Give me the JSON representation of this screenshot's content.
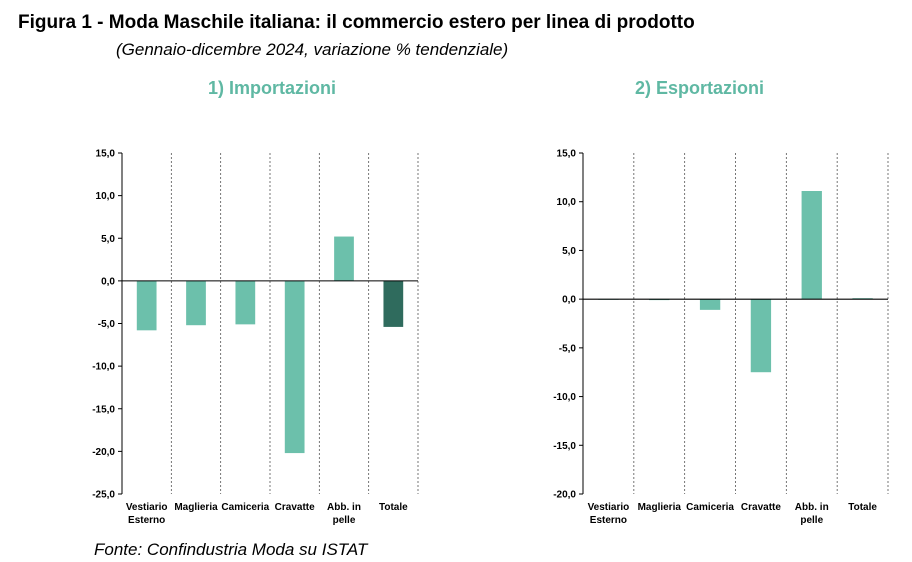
{
  "figure": {
    "title": "Figura 1 - Moda Maschile italiana: il commercio estero per linea di prodotto",
    "subtitle": "(Gennaio-dicembre 2024, variazione % tendenziale)",
    "source": "Fonte: Confindustria Moda su ISTAT"
  },
  "colors": {
    "bar": "#6cc0ab",
    "bar_total": "#2f6b5d",
    "panel_title": "#5fb8a3",
    "axis": "#000000",
    "separator": "#555555"
  },
  "chart_data": [
    {
      "type": "bar",
      "title": "1) Importazioni",
      "categories": [
        "Vestiario Esterno",
        "Maglieria",
        "Camiceria",
        "Cravatte",
        "Abb. in pelle",
        "Totale"
      ],
      "category_lines": [
        [
          "Vestiario",
          "Esterno"
        ],
        [
          "Maglieria"
        ],
        [
          "Camiceria"
        ],
        [
          "Cravatte"
        ],
        [
          "Abb. in",
          "pelle"
        ],
        [
          "Totale"
        ]
      ],
      "values": [
        -5.8,
        -5.2,
        -5.1,
        -20.2,
        5.2,
        -5.4
      ],
      "highlight_index": 5,
      "ylim": [
        -25,
        15
      ],
      "yticks": [
        15,
        10,
        5,
        0,
        -5,
        -10,
        -15,
        -20,
        -25
      ],
      "ytick_labels": [
        "15,0",
        "10,0",
        "5,0",
        "0,0",
        "-5,0",
        "-10,0",
        "-15,0",
        "-20,0",
        "-25,0"
      ],
      "grid": false
    },
    {
      "type": "bar",
      "title": "2) Esportazioni",
      "categories": [
        "Vestiario Esterno",
        "Maglieria",
        "Camiceria",
        "Cravatte",
        "Abb. in pelle",
        "Totale"
      ],
      "category_lines": [
        [
          "Vestiario",
          "Esterno"
        ],
        [
          "Maglieria"
        ],
        [
          "Camiceria"
        ],
        [
          "Cravatte"
        ],
        [
          "Abb. in",
          "pelle"
        ],
        [
          "Totale"
        ]
      ],
      "values": [
        0.0,
        -0.1,
        -1.1,
        -7.5,
        11.1,
        0.1
      ],
      "ylim": [
        -20,
        15
      ],
      "yticks": [
        15,
        10,
        5,
        0,
        -5,
        -10,
        -15,
        -20
      ],
      "ytick_labels": [
        "15,0",
        "10,0",
        "5,0",
        "0,0",
        "-5,0",
        "-10,0",
        "-15,0",
        "-20,0"
      ],
      "grid": false
    }
  ]
}
